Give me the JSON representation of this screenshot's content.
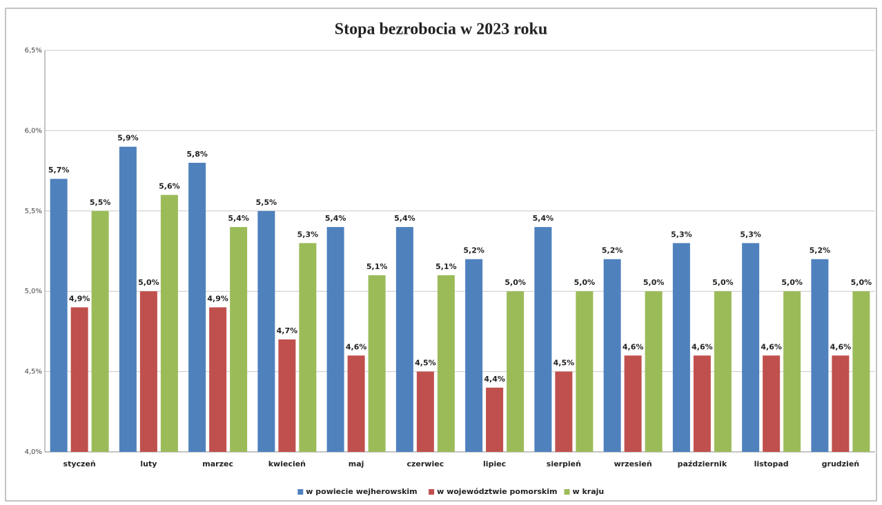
{
  "chart_data": {
    "type": "bar",
    "title": "Stopa bezrobocia w 2023 roku",
    "categories": [
      "styczeń",
      "luty",
      "marzec",
      "kwiecień",
      "maj",
      "czerwiec",
      "lipiec",
      "sierpień",
      "wrzesień",
      "październik",
      "listopad",
      "grudzień"
    ],
    "series": [
      {
        "name": "w powiecie wejherowskim",
        "color": "#4f81bd",
        "values": [
          5.7,
          5.9,
          5.8,
          5.5,
          5.4,
          5.4,
          5.2,
          5.4,
          5.2,
          5.3,
          5.3,
          5.2
        ],
        "value_labels": [
          "5,7%",
          "5,9%",
          "5,8%",
          "5,5%",
          "5,4%",
          "5,4%",
          "5,2%",
          "5,4%",
          "5,2%",
          "5,3%",
          "5,3%",
          "5,2%"
        ]
      },
      {
        "name": "w województwie pomorskim",
        "color": "#c0504d",
        "values": [
          4.9,
          5.0,
          4.9,
          4.7,
          4.6,
          4.5,
          4.4,
          4.5,
          4.6,
          4.6,
          4.6,
          4.6
        ],
        "value_labels": [
          "4,9%",
          "5,0%",
          "4,9%",
          "4,7%",
          "4,6%",
          "4,5%",
          "4,4%",
          "4,5%",
          "4,6%",
          "4,6%",
          "4,6%",
          "4,6%"
        ]
      },
      {
        "name": "w kraju",
        "color": "#9bbb59",
        "values": [
          5.5,
          5.6,
          5.4,
          5.3,
          5.1,
          5.1,
          5.0,
          5.0,
          5.0,
          5.0,
          5.0,
          5.0
        ],
        "value_labels": [
          "5,5%",
          "5,6%",
          "5,4%",
          "5,3%",
          "5,1%",
          "5,1%",
          "5,0%",
          "5,0%",
          "5,0%",
          "5,0%",
          "5,0%",
          "5,0%"
        ]
      }
    ],
    "ylim": [
      4.0,
      6.5
    ],
    "yticks": [
      {
        "value": 4.0,
        "label": "4,0%"
      },
      {
        "value": 4.5,
        "label": "4,5%"
      },
      {
        "value": 5.0,
        "label": "5,0%"
      },
      {
        "value": 5.5,
        "label": "5,5%"
      },
      {
        "value": 6.0,
        "label": "6,0%"
      },
      {
        "value": 6.5,
        "label": "6,5%"
      }
    ],
    "grid": true,
    "legend": "bottom"
  }
}
